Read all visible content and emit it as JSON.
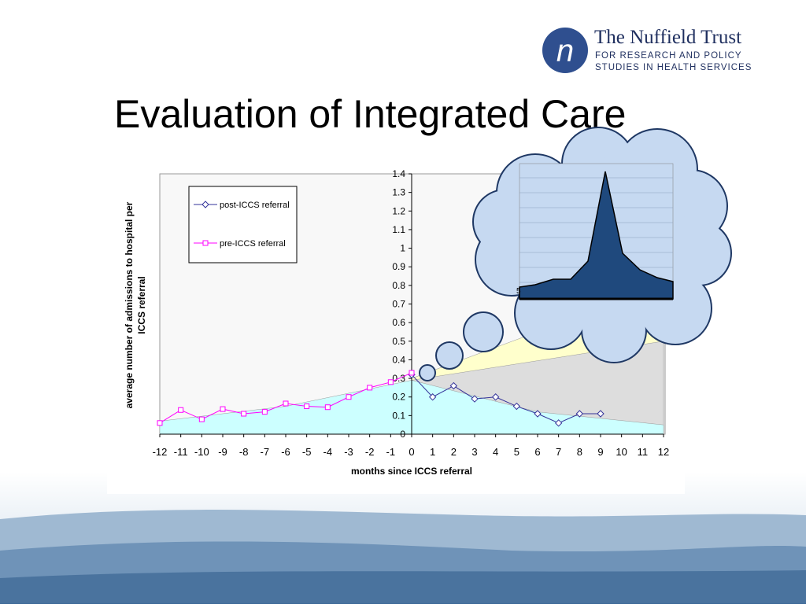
{
  "logo": {
    "letter": "n",
    "name": "The Nuffield Trust",
    "line1": "FOR RESEARCH AND POLICY",
    "line2": "STUDIES IN HEALTH SERVICES"
  },
  "slide_title": "Evaluation of Integrated Care",
  "inset": {
    "label": "5"
  },
  "chart_data": {
    "type": "line",
    "ylabel": [
      "average number of admissions to hospital per",
      "ICCS referral"
    ],
    "xlabel": "months since ICCS referral",
    "xlim": [
      -12,
      12
    ],
    "ylim": [
      0,
      1.4
    ],
    "xticks": [
      -12,
      -11,
      -10,
      -9,
      -8,
      -7,
      -6,
      -5,
      -4,
      -3,
      -2,
      -1,
      0,
      1,
      2,
      3,
      4,
      5,
      6,
      7,
      8,
      9,
      10,
      11,
      12
    ],
    "yticks": [
      0,
      0.1,
      0.2,
      0.3,
      0.4,
      0.5,
      0.6,
      0.7,
      0.8,
      0.9,
      1,
      1.1,
      1.2,
      1.3,
      1.4
    ],
    "series": [
      {
        "name": "post-ICCS referral",
        "color": "#333399",
        "marker": "diamond",
        "x": [
          0,
          1,
          2,
          3,
          4,
          5,
          6,
          7,
          8,
          9
        ],
        "values": [
          0.32,
          0.2,
          0.26,
          0.19,
          0.2,
          0.15,
          0.11,
          0.06,
          0.11,
          0.11
        ]
      },
      {
        "name": "pre-ICCS referral",
        "color": "#ff00ff",
        "marker": "square",
        "x": [
          -12,
          -11,
          -10,
          -9,
          -8,
          -7,
          -6,
          -5,
          -4,
          -3,
          -2,
          -1,
          0
        ],
        "values": [
          0.06,
          0.13,
          0.08,
          0.135,
          0.11,
          0.12,
          0.165,
          0.15,
          0.145,
          0.2,
          0.25,
          0.28,
          0.33
        ]
      }
    ],
    "areas": [
      {
        "color": "#ffffcc",
        "x": [
          0,
          12
        ],
        "values": [
          0.3,
          0.8
        ]
      },
      {
        "color": "#dddddd",
        "x": [
          0,
          12
        ],
        "values": [
          0.29,
          0.5
        ]
      },
      {
        "color": "#ccffff",
        "x": [
          -12,
          -6,
          0,
          6,
          12
        ],
        "values": [
          0.07,
          0.15,
          0.29,
          0.12,
          0.05
        ]
      }
    ]
  }
}
